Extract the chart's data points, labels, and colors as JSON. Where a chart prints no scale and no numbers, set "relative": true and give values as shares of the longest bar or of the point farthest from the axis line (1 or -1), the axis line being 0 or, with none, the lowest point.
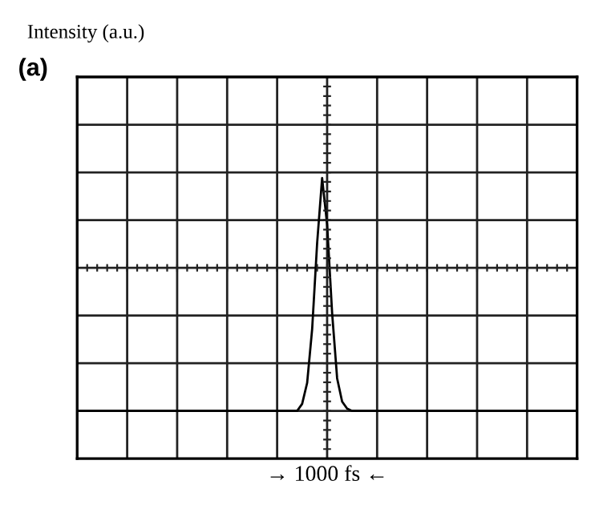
{
  "chart_data": {
    "type": "line",
    "relative": true,
    "title": "(a)",
    "annotations": [
      "Intensity (a.u.)"
    ],
    "xlabel": "→ 1000 fs ←",
    "color": "#000000",
    "grid": true,
    "categories": [
      null,
      null,
      null,
      null,
      null,
      null,
      null,
      null,
      null,
      null,
      null,
      null,
      null,
      null,
      null,
      null,
      null,
      null,
      null,
      null,
      null,
      null,
      null,
      null,
      null,
      null,
      null,
      null,
      null,
      null,
      null,
      null,
      null,
      null,
      null,
      null,
      null,
      null,
      null,
      null,
      null,
      null,
      null,
      null,
      null,
      null,
      null,
      null,
      null,
      null,
      null,
      null,
      null,
      null,
      null,
      null,
      null,
      null,
      null,
      null,
      null,
      null,
      null,
      null,
      null,
      null,
      null,
      null,
      null,
      null,
      null,
      null,
      null,
      null,
      null,
      null,
      null,
      null,
      null,
      null,
      null,
      null,
      null,
      null,
      null,
      null,
      null,
      null,
      null,
      null,
      null,
      null,
      null,
      null,
      null,
      null,
      null,
      null,
      null,
      null,
      null
    ],
    "values": [
      0,
      0,
      0,
      0,
      0,
      0,
      0,
      0,
      0,
      0,
      0,
      0,
      0,
      0,
      0,
      0,
      0,
      0,
      0,
      0,
      0,
      0,
      0,
      0,
      0,
      0,
      0,
      0,
      0,
      0,
      0,
      0,
      0,
      0,
      0,
      0,
      0,
      0,
      0,
      0,
      0,
      0,
      0,
      0,
      0.0,
      0.03,
      0.12,
      0.35,
      0.72,
      1.0,
      0.8,
      0.42,
      0.14,
      0.04,
      0.01,
      0.0,
      0,
      0,
      0,
      0,
      0,
      0,
      0,
      0,
      0,
      0,
      0,
      0,
      0,
      0,
      0,
      0,
      0,
      0,
      0,
      0,
      0,
      0,
      0,
      0,
      0,
      0,
      0,
      0,
      0,
      0,
      0,
      0,
      0,
      0,
      0,
      0,
      0,
      0,
      0,
      0,
      0,
      0,
      0,
      0,
      0
    ]
  }
}
